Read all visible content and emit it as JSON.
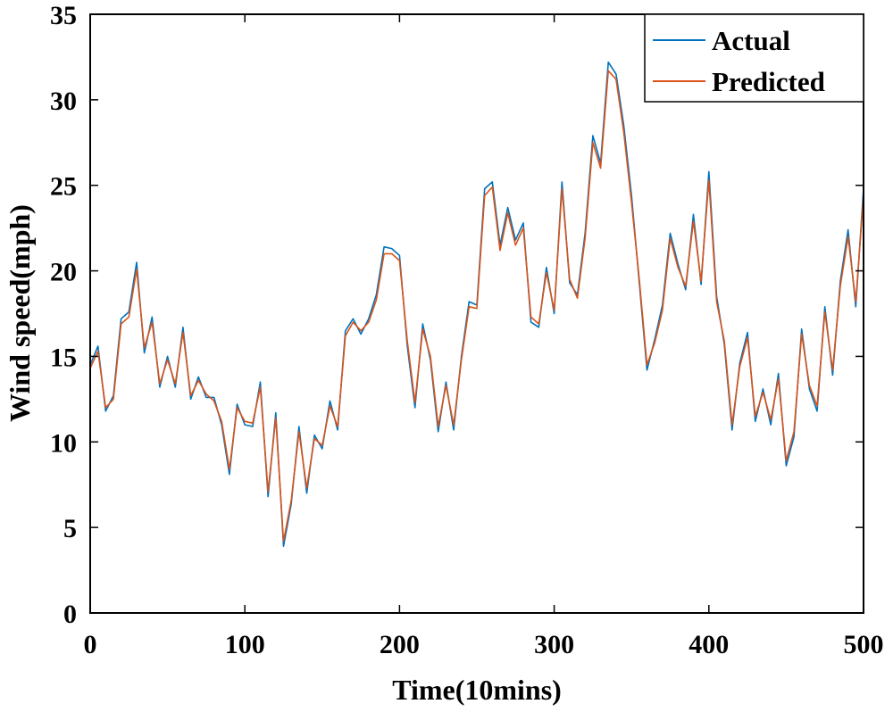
{
  "chart_data": {
    "type": "line",
    "title": "",
    "xlabel": "Time(10mins)",
    "ylabel": "Wind speed(mph)",
    "xlim": [
      0,
      500
    ],
    "ylim": [
      0,
      35
    ],
    "xticks": [
      0,
      100,
      200,
      300,
      400,
      500
    ],
    "yticks": [
      0,
      5,
      10,
      15,
      20,
      25,
      30,
      35
    ],
    "xtick_labels": [
      "0",
      "100",
      "200",
      "300",
      "400",
      "500"
    ],
    "ytick_labels": [
      "0",
      "5",
      "10",
      "15",
      "20",
      "25",
      "30",
      "35"
    ],
    "grid": false,
    "legend_position": "top-right",
    "x": [
      0,
      5,
      10,
      15,
      20,
      25,
      30,
      35,
      40,
      45,
      50,
      55,
      60,
      65,
      70,
      75,
      80,
      85,
      90,
      95,
      100,
      105,
      110,
      115,
      120,
      125,
      130,
      135,
      140,
      145,
      150,
      155,
      160,
      165,
      170,
      175,
      180,
      185,
      190,
      195,
      200,
      205,
      210,
      215,
      220,
      225,
      230,
      235,
      240,
      245,
      250,
      255,
      260,
      265,
      270,
      275,
      280,
      285,
      290,
      295,
      300,
      305,
      310,
      315,
      320,
      325,
      330,
      335,
      340,
      345,
      350,
      355,
      360,
      365,
      370,
      375,
      380,
      385,
      390,
      395,
      400,
      405,
      410,
      415,
      420,
      425,
      430,
      435,
      440,
      445,
      450,
      455,
      460,
      465,
      470,
      475,
      480,
      485,
      490,
      495,
      500
    ],
    "series": [
      {
        "name": "Actual",
        "color": "#0072BD",
        "values": [
          14.5,
          15.6,
          11.8,
          12.7,
          17.2,
          17.6,
          20.5,
          15.2,
          17.3,
          13.2,
          15.0,
          13.2,
          16.7,
          12.5,
          13.8,
          12.6,
          12.6,
          11.0,
          8.1,
          12.2,
          11.0,
          10.9,
          13.5,
          6.8,
          11.7,
          3.9,
          6.4,
          10.9,
          7.0,
          10.4,
          9.6,
          12.4,
          10.7,
          16.5,
          17.2,
          16.3,
          17.2,
          18.6,
          21.4,
          21.3,
          20.9,
          15.6,
          12.0,
          16.9,
          14.8,
          10.6,
          13.5,
          10.7,
          15.0,
          18.2,
          18.0,
          24.8,
          25.2,
          21.5,
          23.7,
          21.8,
          22.8,
          17.0,
          16.7,
          20.2,
          17.5,
          25.2,
          19.3,
          18.6,
          22.2,
          27.9,
          26.3,
          32.2,
          31.5,
          28.5,
          24.4,
          19.3,
          14.2,
          16.0,
          18.0,
          22.2,
          20.4,
          18.9,
          23.3,
          19.2,
          25.8,
          18.5,
          15.7,
          10.7,
          14.6,
          16.4,
          11.2,
          13.1,
          11.0,
          14.0,
          8.6,
          10.3,
          16.6,
          13.1,
          11.8,
          17.9,
          13.9,
          19.4,
          22.4,
          17.9,
          24.8
        ]
      },
      {
        "name": "Predicted",
        "color": "#D95319",
        "values": [
          14.3,
          15.3,
          12.0,
          12.5,
          16.9,
          17.3,
          20.1,
          15.5,
          17.0,
          13.4,
          14.8,
          13.4,
          16.4,
          12.7,
          13.6,
          12.8,
          12.4,
          11.2,
          8.4,
          12.0,
          11.2,
          11.1,
          13.2,
          7.1,
          11.4,
          4.2,
          6.6,
          10.6,
          7.3,
          10.2,
          9.8,
          12.1,
          10.9,
          16.2,
          17.0,
          16.5,
          17.0,
          18.3,
          21.0,
          21.0,
          20.6,
          15.9,
          12.3,
          16.6,
          15.0,
          10.9,
          13.3,
          11.0,
          14.8,
          17.9,
          17.8,
          24.4,
          24.9,
          21.2,
          23.4,
          21.5,
          22.5,
          17.3,
          16.9,
          19.9,
          17.7,
          24.8,
          19.5,
          18.4,
          21.9,
          27.5,
          26.0,
          31.7,
          31.2,
          28.1,
          24.0,
          19.5,
          14.5,
          15.8,
          17.7,
          21.9,
          20.2,
          19.1,
          22.9,
          19.4,
          25.3,
          18.2,
          15.9,
          11.0,
          14.4,
          16.1,
          11.5,
          12.9,
          11.3,
          13.7,
          8.9,
          10.6,
          16.3,
          13.3,
          12.1,
          17.6,
          14.2,
          19.1,
          22.0,
          18.2,
          24.4
        ]
      }
    ]
  }
}
